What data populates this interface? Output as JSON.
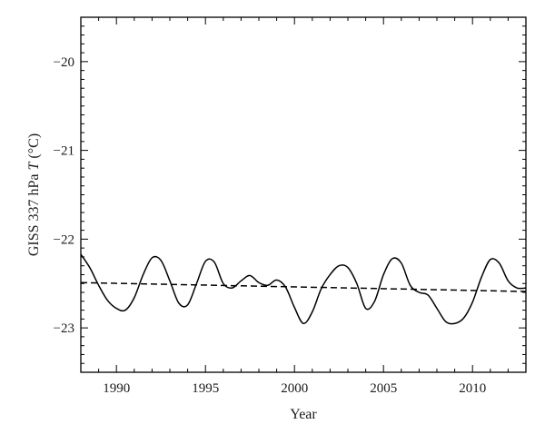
{
  "chart_data": {
    "type": "line",
    "xlabel": "Year",
    "ylabel_prefix": "GISS 337 hPa ",
    "ylabel_var": "T",
    "ylabel_unit": " (°C)",
    "xlim": [
      1988,
      2013
    ],
    "ylim": [
      -23.5,
      -19.5
    ],
    "xticks": [
      1990,
      1995,
      2000,
      2005,
      2010
    ],
    "xtick_labels": [
      "1990",
      "1995",
      "2000",
      "2005",
      "2010"
    ],
    "yticks": [
      -20,
      -21,
      -22,
      -23
    ],
    "ytick_labels": [
      "−20",
      "−21",
      "−22",
      "−23"
    ],
    "grid": false,
    "series": [
      {
        "style": "solid",
        "x": [
          1988.0,
          1988.5,
          1989.0,
          1989.5,
          1990.0,
          1990.5,
          1991.0,
          1991.5,
          1992.0,
          1992.5,
          1993.0,
          1993.5,
          1994.0,
          1994.5,
          1995.0,
          1995.5,
          1996.0,
          1996.5,
          1997.0,
          1997.5,
          1998.0,
          1998.5,
          1999.0,
          1999.5,
          2000.0,
          2000.5,
          2001.0,
          2001.5,
          2002.0,
          2002.5,
          2003.0,
          2003.5,
          2004.0,
          2004.5,
          2005.0,
          2005.5,
          2006.0,
          2006.5,
          2007.0,
          2007.5,
          2008.0,
          2008.5,
          2009.0,
          2009.5,
          2010.0,
          2010.5,
          2011.0,
          2011.5,
          2012.0,
          2012.5,
          2013.0
        ],
        "y": [
          -22.17,
          -22.32,
          -22.52,
          -22.69,
          -22.78,
          -22.8,
          -22.66,
          -22.4,
          -22.21,
          -22.24,
          -22.47,
          -22.72,
          -22.74,
          -22.5,
          -22.25,
          -22.26,
          -22.5,
          -22.55,
          -22.47,
          -22.41,
          -22.49,
          -22.52,
          -22.46,
          -22.54,
          -22.77,
          -22.95,
          -22.82,
          -22.56,
          -22.4,
          -22.3,
          -22.32,
          -22.5,
          -22.78,
          -22.7,
          -22.4,
          -22.22,
          -22.27,
          -22.52,
          -22.6,
          -22.63,
          -22.78,
          -22.93,
          -22.95,
          -22.89,
          -22.71,
          -22.43,
          -22.23,
          -22.27,
          -22.47,
          -22.55,
          -22.55
        ]
      },
      {
        "style": "dashed",
        "x": [
          1988,
          2013
        ],
        "y": [
          -22.49,
          -22.59
        ]
      }
    ]
  }
}
